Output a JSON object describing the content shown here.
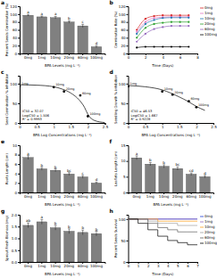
{
  "chart_data": [
    {
      "type": "bar",
      "title": "a",
      "x_label": "BPA Levels (mg L⁻¹)",
      "y_label": "Percent Seeds Germination (%)",
      "categories": [
        "0mg",
        "1mg",
        "10mg",
        "20mg",
        "60mg",
        "100mg"
      ],
      "values": [
        97,
        93,
        91,
        80,
        70,
        17
      ],
      "errors": [
        2,
        2,
        3,
        3,
        4,
        3
      ],
      "annotations": [
        "a",
        "a",
        "a",
        "b",
        "c",
        "d"
      ],
      "color": "#808080",
      "ylim": [
        0,
        120
      ],
      "yticks": [
        0,
        20,
        40,
        60,
        80,
        100,
        120
      ]
    },
    {
      "type": "line",
      "title": "b",
      "x_label": "Time (Days)",
      "y_label": "Germination Rate (%)",
      "x": [
        1,
        2,
        3,
        4,
        5,
        6,
        7
      ],
      "series": [
        {
          "name": "0mg",
          "color": "#d62728",
          "values": [
            60,
            88,
            95,
            97,
            97,
            97,
            97
          ]
        },
        {
          "name": "1mg",
          "color": "#e377c2",
          "values": [
            55,
            80,
            90,
            92,
            93,
            93,
            93
          ]
        },
        {
          "name": "10mg",
          "color": "#1f77b4",
          "values": [
            50,
            75,
            85,
            90,
            91,
            91,
            91
          ]
        },
        {
          "name": "20mg",
          "color": "#2ca02c",
          "values": [
            40,
            65,
            75,
            78,
            80,
            80,
            80
          ]
        },
        {
          "name": "60mg",
          "color": "#9467bd",
          "values": [
            30,
            50,
            62,
            67,
            70,
            70,
            70
          ]
        },
        {
          "name": "100mg",
          "color": "#000000",
          "values": [
            15,
            17,
            17,
            17,
            17,
            17,
            17
          ]
        }
      ],
      "marker": "circle",
      "legend": "right",
      "xlim": [
        0,
        8
      ],
      "xticks": [
        0,
        2,
        4,
        6,
        8
      ],
      "ylim": [
        0,
        120
      ],
      "yticks": [
        0,
        20,
        40,
        60,
        80,
        100,
        120
      ]
    },
    {
      "type": "scatter",
      "title": "c",
      "x_label": "BPA Log Concentrations (mg L⁻¹)",
      "y_label": "Seed Germination % inhibition",
      "series": [
        {
          "type": "scatter",
          "color": "#000000",
          "x": [
            0,
            1,
            1.301,
            1.778,
            2
          ],
          "values": [
            93,
            91,
            80,
            70,
            17
          ],
          "labels": [
            "1mg",
            "10mg",
            "20mg",
            "60mg",
            "100mg"
          ]
        },
        {
          "type": "line",
          "color": "#000000",
          "x": [
            0,
            0.5,
            1,
            1.25,
            1.5,
            1.75,
            1.9,
            2,
            2.2,
            2.5
          ],
          "values": [
            97,
            96,
            92,
            86,
            76,
            58,
            40,
            22,
            6,
            1
          ]
        }
      ],
      "annotations": [
        "IC50 = 32.07",
        "LogIC50 = 1.506",
        "R² = 0.9993"
      ],
      "xlim": [
        0,
        2.5
      ],
      "xticks": [
        0,
        0.5,
        1,
        1.5,
        2,
        2.5
      ],
      "ylim": [
        0,
        120
      ],
      "yticks": [
        0,
        50,
        100
      ]
    },
    {
      "type": "scatter",
      "title": "d",
      "x_label": "BPA Log Concentrations (mg L⁻¹)",
      "y_label": "Seedling Growth % inhibition",
      "series": [
        {
          "type": "scatter",
          "color": "#000000",
          "x": [
            0,
            1,
            1.301,
            1.778,
            2
          ],
          "values": [
            93,
            80,
            72,
            55,
            40
          ],
          "labels": [
            "1mg",
            "10mg",
            "20mg",
            "60mg",
            "100mg"
          ]
        },
        {
          "type": "line",
          "color": "#000000",
          "x": [
            0,
            0.5,
            1,
            1.25,
            1.5,
            1.75,
            2,
            2.25
          ],
          "values": [
            95,
            92,
            84,
            76,
            66,
            55,
            42,
            32
          ]
        }
      ],
      "annotations": [
        "IC50 = 46.53",
        "LogIC50 = 1.667",
        "R² = 0.9228"
      ],
      "xlim": [
        0,
        2.5
      ],
      "xticks": [
        0,
        0.5,
        1,
        1.5,
        2,
        2.5
      ],
      "ylim": [
        0,
        120
      ],
      "yticks": [
        0,
        50,
        100
      ]
    },
    {
      "type": "bar",
      "title": "e",
      "x_label": "BPA Levels (mg L⁻¹)",
      "y_label": "Roots Length (cm)",
      "categories": [
        "0mg",
        "1mg",
        "10mg",
        "20mg",
        "60mg",
        "100mg"
      ],
      "values": [
        7.4,
        5.0,
        4.7,
        3.9,
        3.3,
        2.0
      ],
      "errors": [
        0.4,
        0.3,
        0.3,
        0.3,
        0.3,
        0.2
      ],
      "annotations": [
        "a",
        "b",
        "b",
        "bc",
        "c",
        "d"
      ],
      "color": "#808080",
      "ylim": [
        0,
        10
      ],
      "yticks": [
        0,
        2,
        4,
        6,
        8,
        10
      ]
    },
    {
      "type": "bar",
      "title": "f",
      "x_label": "BPA Levels (mg L⁻¹)",
      "y_label": "Leaflets Length (cm)",
      "categories": [
        "0mg",
        "1mg",
        "10mg",
        "20mg",
        "60mg",
        "100mg"
      ],
      "values": [
        11.0,
        9.0,
        8.3,
        7.6,
        5.8,
        5.0
      ],
      "errors": [
        0.6,
        0.5,
        0.5,
        0.5,
        0.4,
        0.4
      ],
      "annotations": [
        "a",
        "b",
        "b",
        "bc",
        "cd",
        "d"
      ],
      "color": "#808080",
      "ylim": [
        0,
        15
      ],
      "yticks": [
        0,
        5,
        10,
        15
      ]
    },
    {
      "type": "bar",
      "title": "g",
      "x_label": "BPA Levels (mg L⁻¹)",
      "y_label": "Sprout Fresh Biomass (mg)",
      "categories": [
        "0mg",
        "1mg",
        "10mg",
        "20mg",
        "60mg",
        "100mg"
      ],
      "values": [
        1.55,
        1.7,
        1.45,
        1.3,
        1.25,
        1.2
      ],
      "errors": [
        0.1,
        0.1,
        0.1,
        0.1,
        0.1,
        0.1
      ],
      "annotations": [
        "ab",
        "a",
        "b",
        "b",
        "b",
        "b"
      ],
      "color": "#808080",
      "ylim": [
        0,
        2
      ],
      "yticks": [
        {
          "value": 0,
          "label": "0.0"
        },
        {
          "value": 0.5,
          "label": "0.5"
        },
        {
          "value": 1,
          "label": "1.0"
        },
        {
          "value": 1.5,
          "label": "1.5"
        },
        {
          "value": 2,
          "label": "2.0"
        }
      ]
    },
    {
      "type": "line",
      "title": "h",
      "x_label": "Time (Days)",
      "y_label": "Percent Seeds Survival",
      "x": [
        0,
        1,
        2,
        3,
        4,
        5,
        6,
        7
      ],
      "series": [
        {
          "name": "0mg",
          "color": "#1f3fd6",
          "values": [
            100,
            100,
            100,
            100,
            100,
            100,
            100,
            100
          ]
        },
        {
          "name": "1mg",
          "color": "#9467bd",
          "values": [
            100,
            100,
            100,
            100,
            100,
            100,
            100,
            100
          ]
        },
        {
          "name": "10mg",
          "color": "#ff9f1c",
          "values": [
            100,
            100,
            100,
            95,
            95,
            95,
            95,
            95
          ]
        },
        {
          "name": "20mg",
          "color": "#a0a0a0",
          "values": [
            100,
            100,
            95,
            90,
            90,
            85,
            85,
            85
          ]
        },
        {
          "name": "60mg",
          "color": "#606060",
          "values": [
            100,
            100,
            90,
            80,
            75,
            70,
            70,
            70
          ]
        },
        {
          "name": "100mg",
          "color": "#000000",
          "values": [
            100,
            90,
            75,
            60,
            50,
            45,
            40,
            40
          ]
        }
      ],
      "line_style": "step",
      "legend": "right",
      "xlim": [
        0,
        7
      ],
      "xticks": [
        0,
        1,
        2,
        3,
        4,
        5,
        6,
        7
      ],
      "ylim": [
        0,
        110
      ],
      "yticks": [
        0,
        50,
        100
      ]
    }
  ]
}
